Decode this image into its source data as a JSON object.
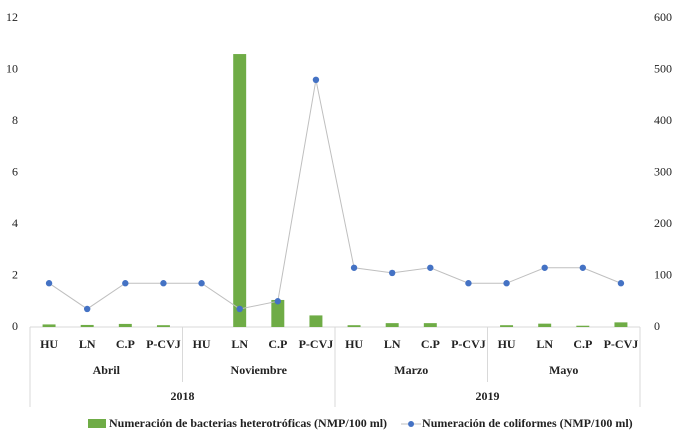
{
  "chart_data": {
    "type": "bar-line",
    "categories": [
      "HU",
      "LN",
      "C.P",
      "P-CVJ",
      "HU",
      "LN",
      "C.P",
      "P-CVJ",
      "HU",
      "LN",
      "C.P",
      "P-CVJ",
      "HU",
      "LN",
      "C.P",
      "P-CVJ"
    ],
    "category_groups": [
      "Abril",
      "Noviembre",
      "Marzo",
      "Mayo"
    ],
    "category_supergroups": [
      "2018",
      "2019"
    ],
    "series": [
      {
        "name": "Numeración de bacterias heterotróficas (NMP/100 ml)",
        "type": "bar",
        "color": "#6fac46",
        "axis": "y",
        "values": [
          0.1,
          0.08,
          0.12,
          0.07,
          0,
          10.6,
          1.05,
          0.45,
          0.07,
          0.15,
          0.15,
          0,
          0.07,
          0.13,
          0.05,
          0.18
        ]
      },
      {
        "name": "Numeración de coliformes (NMP/100 ml)",
        "type": "line",
        "color": "#4472c4",
        "line_color": "#bfbfbf",
        "axis": "y2",
        "values": [
          85,
          35,
          85,
          85,
          85,
          35,
          50,
          480,
          115,
          105,
          115,
          85,
          85,
          115,
          115,
          85
        ]
      }
    ],
    "ylim": [
      0,
      12
    ],
    "yticks": [
      0,
      2,
      4,
      6,
      8,
      10,
      12
    ],
    "y2lim": [
      0,
      600
    ],
    "y2ticks": [
      0,
      100,
      200,
      300,
      400,
      500,
      600
    ],
    "grid": false,
    "legend": "bottom"
  }
}
